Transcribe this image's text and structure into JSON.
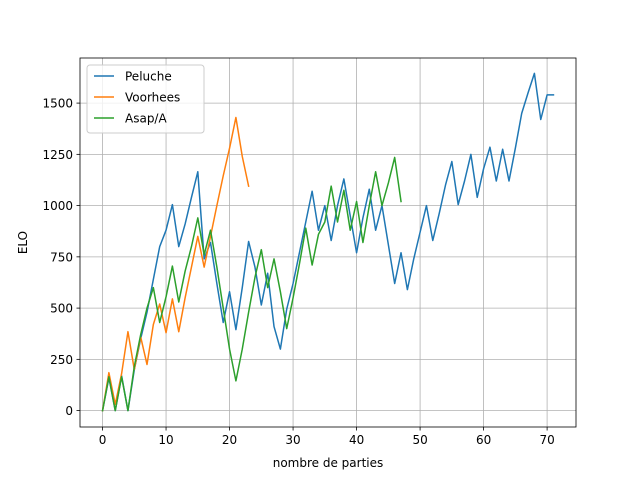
{
  "chart_data": {
    "type": "line",
    "title": "",
    "xlabel": "nombre de parties",
    "ylabel": "ELO",
    "xlim": [
      -3.55,
      74.55
    ],
    "ylim": [
      -80,
      1720
    ],
    "xticks": [
      0,
      10,
      20,
      30,
      40,
      50,
      60,
      70
    ],
    "yticks": [
      0,
      250,
      500,
      750,
      1000,
      1250,
      1500
    ],
    "grid": true,
    "legend_position": "top-left",
    "series": [
      {
        "name": "Peluche",
        "color": "#1f77b4",
        "x": [
          0,
          1,
          2,
          3,
          4,
          5,
          6,
          7,
          8,
          9,
          10,
          11,
          12,
          13,
          14,
          15,
          16,
          17,
          18,
          19,
          20,
          21,
          22,
          23,
          24,
          25,
          26,
          27,
          28,
          29,
          30,
          31,
          32,
          33,
          34,
          35,
          36,
          37,
          38,
          39,
          40,
          41,
          42,
          43,
          44,
          45,
          46,
          47,
          48,
          49,
          50,
          51,
          52,
          53,
          54,
          55,
          56,
          57,
          58,
          59,
          60,
          61,
          62,
          63,
          64,
          65,
          66,
          67,
          68,
          69,
          70,
          71
        ],
        "y": [
          0,
          160,
          0,
          170,
          0,
          200,
          350,
          480,
          640,
          800,
          880,
          1005,
          800,
          910,
          1040,
          1165,
          740,
          820,
          620,
          430,
          580,
          395,
          600,
          825,
          700,
          515,
          670,
          410,
          300,
          495,
          620,
          770,
          920,
          1070,
          880,
          1000,
          830,
          1000,
          1130,
          950,
          770,
          940,
          1080,
          880,
          1000,
          810,
          620,
          770,
          590,
          740,
          870,
          1000,
          830,
          960,
          1100,
          1215,
          1005,
          1120,
          1250,
          1040,
          1180,
          1285,
          1120,
          1275,
          1120,
          1280,
          1450,
          1550,
          1645,
          1420,
          1540,
          1540
        ]
      },
      {
        "name": "Voorhees",
        "color": "#ff7f0e",
        "x": [
          0,
          1,
          2,
          3,
          4,
          5,
          6,
          7,
          8,
          9,
          10,
          11,
          12,
          13,
          14,
          15,
          16,
          17,
          18,
          19,
          20,
          21,
          22,
          23
        ],
        "y": [
          0,
          185,
          30,
          180,
          385,
          200,
          360,
          225,
          420,
          520,
          380,
          545,
          385,
          550,
          700,
          850,
          700,
          850,
          1000,
          1145,
          1280,
          1430,
          1240,
          1095
        ]
      },
      {
        "name": "Asap/A",
        "color": "#2ca02c",
        "x": [
          0,
          1,
          2,
          3,
          4,
          5,
          6,
          7,
          8,
          9,
          10,
          11,
          12,
          13,
          14,
          15,
          16,
          17,
          18,
          19,
          20,
          21,
          22,
          23,
          24,
          25,
          26,
          27,
          28,
          29,
          30,
          31,
          32,
          33,
          34,
          35,
          36,
          37,
          38,
          39,
          40,
          41,
          42,
          43,
          44,
          45,
          46,
          47
        ],
        "y": [
          0,
          165,
          0,
          165,
          0,
          215,
          370,
          500,
          600,
          430,
          555,
          705,
          530,
          680,
          800,
          940,
          760,
          880,
          700,
          500,
          300,
          145,
          300,
          480,
          650,
          785,
          600,
          740,
          580,
          400,
          550,
          715,
          890,
          710,
          860,
          920,
          1095,
          920,
          1075,
          880,
          1020,
          820,
          1000,
          1165,
          1000,
          1110,
          1235,
          1020
        ]
      }
    ]
  }
}
